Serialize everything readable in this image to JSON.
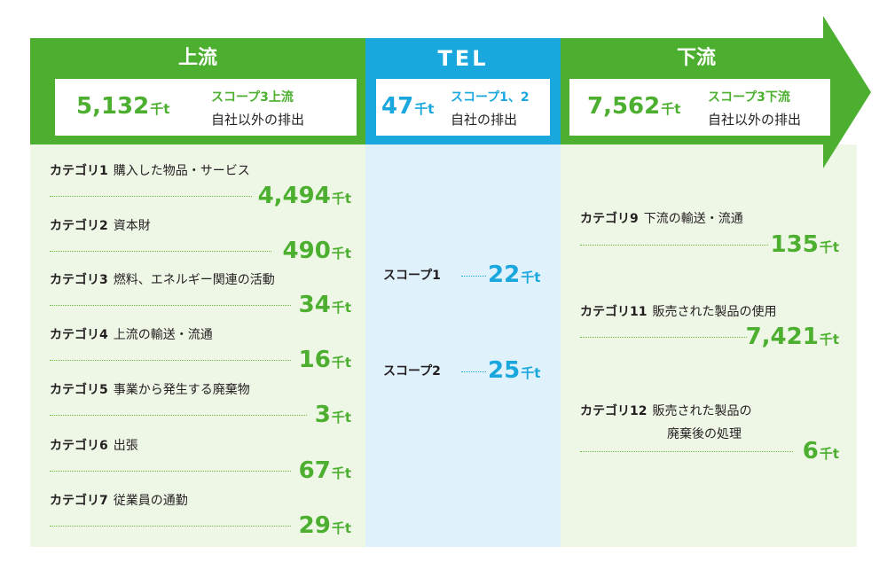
{
  "colors": {
    "green": "#4caf2f",
    "light_green": "#eef6e6",
    "blue": "#1aa7de",
    "light_blue": "#dff1fb"
  },
  "upstream": {
    "title": "上流",
    "total_value": "5,132",
    "total_unit": "千t",
    "scope_label": "スコープ3上流",
    "desc": "自社以外の排出",
    "categories": [
      {
        "cat": "カテゴリ1",
        "name": "購入した物品・サービス",
        "value": "4,494",
        "unit": "千t"
      },
      {
        "cat": "カテゴリ2",
        "name": "資本財",
        "value": "490",
        "unit": "千t"
      },
      {
        "cat": "カテゴリ3",
        "name": "燃料、エネルギー関連の活動",
        "value": "34",
        "unit": "千t"
      },
      {
        "cat": "カテゴリ4",
        "name": "上流の輸送・流通",
        "value": "16",
        "unit": "千t"
      },
      {
        "cat": "カテゴリ5",
        "name": "事業から発生する廃棄物",
        "value": "3",
        "unit": "千t"
      },
      {
        "cat": "カテゴリ6",
        "name": "出張",
        "value": "67",
        "unit": "千t"
      },
      {
        "cat": "カテゴリ7",
        "name": "従業員の通勤",
        "value": "29",
        "unit": "千t"
      }
    ]
  },
  "tel": {
    "title": "TEL",
    "total_value": "47",
    "total_unit": "千t",
    "scope_label": "スコープ1、2",
    "desc": "自社の排出",
    "scopes": [
      {
        "label": "スコープ1",
        "value": "22",
        "unit": "千t"
      },
      {
        "label": "スコープ2",
        "value": "25",
        "unit": "千t"
      }
    ]
  },
  "downstream": {
    "title": "下流",
    "total_value": "7,562",
    "total_unit": "千t",
    "scope_label": "スコープ3下流",
    "desc": "自社以外の排出",
    "categories": [
      {
        "cat": "カテゴリ9",
        "name": "下流の輸送・流通",
        "name2": "",
        "value": "135",
        "unit": "千t"
      },
      {
        "cat": "カテゴリ11",
        "name": "販売された製品の使用",
        "name2": "",
        "value": "7,421",
        "unit": "千t"
      },
      {
        "cat": "カテゴリ12",
        "name": "販売された製品の",
        "name2": "廃棄後の処理",
        "value": "6",
        "unit": "千t"
      }
    ]
  }
}
